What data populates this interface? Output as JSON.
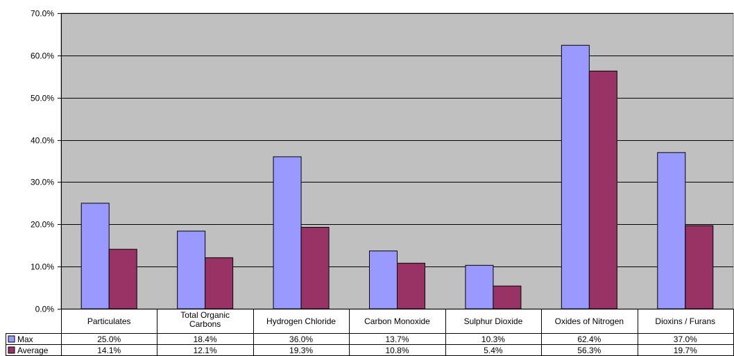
{
  "chart_data": {
    "type": "bar",
    "categories": [
      [
        "Particulates"
      ],
      [
        "Total Organic",
        "Carbons"
      ],
      [
        "Hydrogen Chloride"
      ],
      [
        "Carbon Monoxide"
      ],
      [
        "Sulphur Dioxide"
      ],
      [
        "Oxides of Nitrogen"
      ],
      [
        "Dioxins / Furans"
      ]
    ],
    "series": [
      {
        "name": "Max",
        "color": "#9999ff",
        "values": [
          25.0,
          18.4,
          36.0,
          13.7,
          10.3,
          62.4,
          37.0
        ],
        "labels": [
          "25.0%",
          "18.4%",
          "36.0%",
          "13.7%",
          "10.3%",
          "62.4%",
          "37.0%"
        ]
      },
      {
        "name": "Average",
        "color": "#993366",
        "values": [
          14.1,
          12.1,
          19.3,
          10.8,
          5.4,
          56.3,
          19.7
        ],
        "labels": [
          "14.1%",
          "12.1%",
          "19.3%",
          "10.8%",
          "5.4%",
          "56.3%",
          "19.7%"
        ]
      }
    ],
    "yticks": [
      "0.0%",
      "10.0%",
      "20.0%",
      "30.0%",
      "40.0%",
      "50.0%",
      "60.0%",
      "70.0%"
    ],
    "ylim": [
      0,
      70
    ],
    "grid": true,
    "legend": "data-table",
    "plot_background": "#c0c0c0"
  }
}
